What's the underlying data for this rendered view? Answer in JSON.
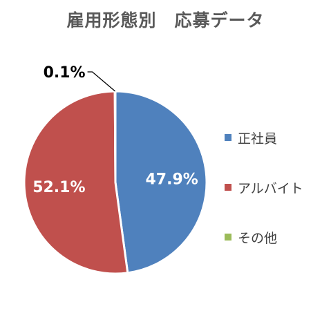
{
  "chart_data": {
    "type": "pie",
    "title": "雇用形態別　応募データ",
    "categories": [
      "正社員",
      "アルバイト",
      "その他"
    ],
    "values": [
      47.9,
      52.1,
      0.1
    ],
    "labels": [
      "47.9%",
      "52.1%",
      "0.1%"
    ],
    "colors": [
      "#4F81BD",
      "#C0504D",
      "#9BBB59"
    ],
    "start_angle": "12 o'clock",
    "direction": "clockwise",
    "legend_position": "right"
  }
}
